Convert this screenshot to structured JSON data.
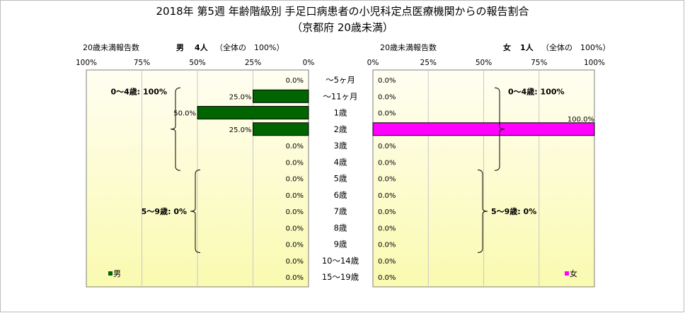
{
  "title_line1": "2018年 第5週 年齢階級別 手足口病患者の小児科定点医療機関からの報告割合",
  "title_line2": "（京都府 20歳未満）",
  "male_header": {
    "label": "20歳未満報告数",
    "sex": "男",
    "count": "4人",
    "total": "（全体の　100%）"
  },
  "female_header": {
    "label": "20歳未満報告数",
    "sex": "女",
    "count": "1人",
    "total": "（全体の　100%）"
  },
  "colors": {
    "male_bar": "#006400",
    "female_bar": "#ff00ff",
    "plot_top": "#fffef2",
    "plot_bottom": "#fafab0"
  },
  "chart_data": {
    "type": "bar",
    "categories": [
      "～5ヶ月",
      "～11ヶ月",
      "1歳",
      "2歳",
      "3歳",
      "4歳",
      "5歳",
      "6歳",
      "7歳",
      "8歳",
      "9歳",
      "10～14歳",
      "15～19歳"
    ],
    "series": [
      {
        "name": "男",
        "values": [
          0,
          25,
          50,
          25,
          0,
          0,
          0,
          0,
          0,
          0,
          0,
          0,
          0
        ]
      },
      {
        "name": "女",
        "values": [
          0,
          0,
          0,
          100,
          0,
          0,
          0,
          0,
          0,
          0,
          0,
          0,
          0
        ]
      }
    ],
    "value_labels": {
      "男": [
        "0.0%",
        "25.0%",
        "50.0%",
        "25.0%",
        "0.0%",
        "0.0%",
        "0.0%",
        "0.0%",
        "0.0%",
        "0.0%",
        "0.0%",
        "0.0%",
        "0.0%"
      ],
      "女": [
        "0.0%",
        "0.0%",
        "0.0%",
        "100.0%",
        "0.0%",
        "0.0%",
        "0.0%",
        "0.0%",
        "0.0%",
        "0.0%",
        "0.0%",
        "0.0%",
        "0.0%"
      ]
    },
    "male_axis_ticks": [
      "100%",
      "75%",
      "50%",
      "25%",
      "0%"
    ],
    "female_axis_ticks": [
      "0%",
      "25%",
      "50%",
      "75%",
      "100%"
    ],
    "xlim": [
      0,
      100
    ],
    "unit": "%",
    "grid": true,
    "male_groups": [
      {
        "label": "0～4歳: 100%",
        "from": 1,
        "to": 5
      },
      {
        "label": "5～9歳: 0%",
        "from": 6,
        "to": 10
      }
    ],
    "female_groups": [
      {
        "label": "0～4歳: 100%",
        "from": 1,
        "to": 5
      },
      {
        "label": "5～9歳: 0%",
        "from": 6,
        "to": 10
      }
    ],
    "legend": {
      "male": "男",
      "female": "女",
      "male_position": "bottom-left",
      "female_position": "bottom-right"
    }
  }
}
